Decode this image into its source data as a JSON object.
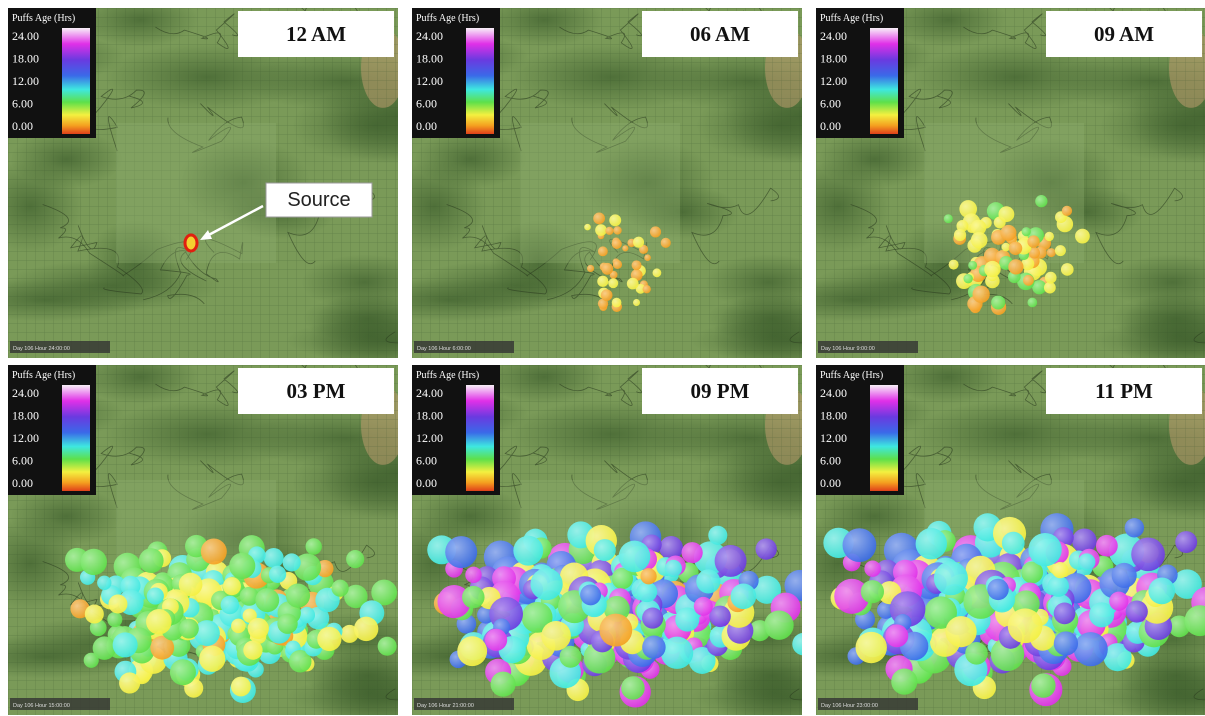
{
  "legend": {
    "title": "Puffs Age (Hrs)",
    "ticks": [
      "24.00",
      "18.00",
      "12.00",
      "6.00",
      "0.00"
    ]
  },
  "annotation": "Source",
  "panels": [
    {
      "time": "12 AM",
      "footer": "Day 106 Hour 24:00:00"
    },
    {
      "time": "06 AM",
      "footer": "Day 106 Hour 6:00:00"
    },
    {
      "time": "09 AM",
      "footer": "Day 106 Hour 9:00:00"
    },
    {
      "time": "03 PM",
      "footer": "Day 106 Hour 15:00:00"
    },
    {
      "time": "09 PM",
      "footer": "Day 106 Hour 21:00:00"
    },
    {
      "time": "11 PM",
      "footer": "Day 106 Hour 23:00:00"
    }
  ]
}
